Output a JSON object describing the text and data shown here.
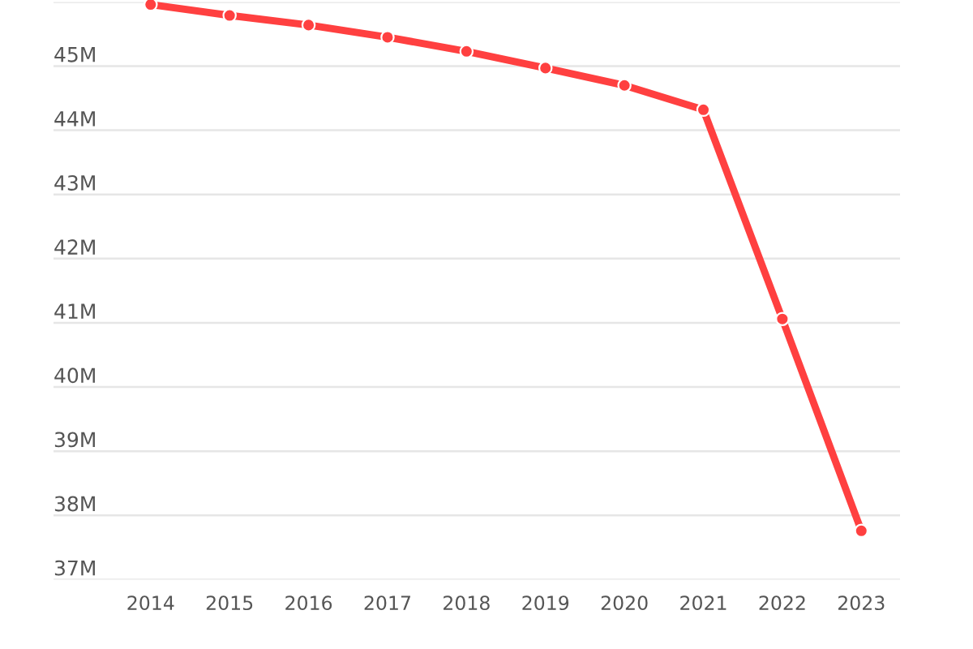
{
  "chart_data": {
    "type": "line",
    "categories": [
      "2014",
      "2015",
      "2016",
      "2017",
      "2018",
      "2019",
      "2020",
      "2021",
      "2022",
      "2023"
    ],
    "values": [
      45.96,
      45.79,
      45.64,
      45.45,
      45.23,
      44.97,
      44.7,
      44.32,
      41.06,
      37.76
    ],
    "color": "#ff4040",
    "ylim": [
      37,
      46
    ],
    "yticks": [
      {
        "value": 37,
        "label": "37M"
      },
      {
        "value": 38,
        "label": "38M"
      },
      {
        "value": 39,
        "label": "39M"
      },
      {
        "value": 40,
        "label": "40M"
      },
      {
        "value": 41,
        "label": "41M"
      },
      {
        "value": 42,
        "label": "42M"
      },
      {
        "value": 43,
        "label": "43M"
      },
      {
        "value": 44,
        "label": "44M"
      },
      {
        "value": 45,
        "label": "45M"
      },
      {
        "value": 46,
        "label": null
      }
    ],
    "grid": "y",
    "marker": "circle",
    "line_style": "solid"
  }
}
